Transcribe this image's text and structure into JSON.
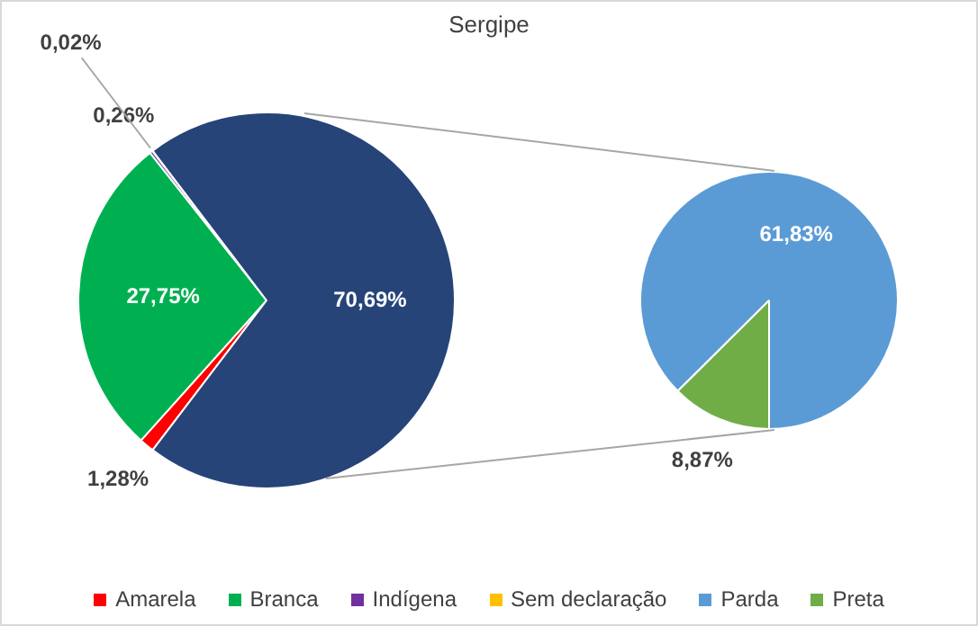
{
  "chart_data": [
    {
      "type": "pie",
      "title": "Sergipe",
      "categories": [
        "Amarela",
        "Branca",
        "Indígena",
        "Sem declaração",
        null
      ],
      "values": [
        1.28,
        27.75,
        0.26,
        0.02,
        70.69
      ],
      "value_labels": [
        "1,28%",
        "27,75%",
        "0,26%",
        "0,02%",
        "70,69%"
      ],
      "colors": [
        "#ff0000",
        "#00b050",
        "#7030a0",
        "#ffc000",
        "#264478"
      ],
      "legend": "bottom"
    },
    {
      "type": "pie",
      "categories": [
        "Parda",
        "Preta"
      ],
      "values": [
        61.83,
        8.87
      ],
      "value_labels": [
        "61,83%",
        "8,87%"
      ],
      "colors": [
        "#5b9bd5",
        "#70ad47"
      ],
      "legend": "bottom"
    }
  ]
}
